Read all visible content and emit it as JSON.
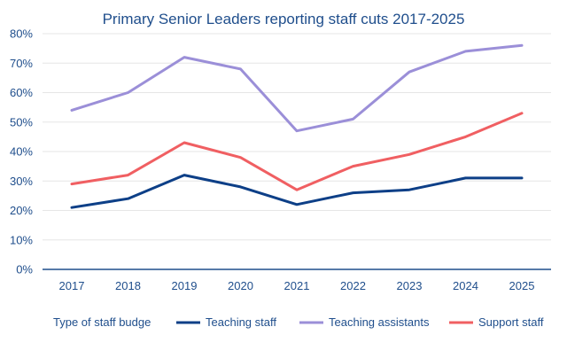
{
  "chart_data": {
    "type": "line",
    "title": "Primary Senior Leaders reporting staff cuts 2017-2025",
    "categories": [
      "2017",
      "2018",
      "2019",
      "2020",
      "2021",
      "2022",
      "2023",
      "2024",
      "2025"
    ],
    "series": [
      {
        "name": "Teaching staff",
        "color": "#0d3f87",
        "values": [
          21,
          24,
          32,
          28,
          22,
          26,
          27,
          31,
          31
        ]
      },
      {
        "name": "Teaching assistants",
        "color": "#9b8fd8",
        "values": [
          54,
          60,
          72,
          68,
          47,
          51,
          67,
          74,
          76
        ]
      },
      {
        "name": "Support staff",
        "color": "#f05f62",
        "values": [
          29,
          32,
          43,
          38,
          27,
          35,
          39,
          45,
          53
        ]
      }
    ],
    "ylim": [
      0,
      80
    ],
    "yticks": [
      "0%",
      "10%",
      "20%",
      "30%",
      "40%",
      "50%",
      "60%",
      "70%",
      "80%"
    ],
    "grid": true,
    "legend": {
      "title": "Type of staff budge",
      "placement": "bottom"
    }
  }
}
